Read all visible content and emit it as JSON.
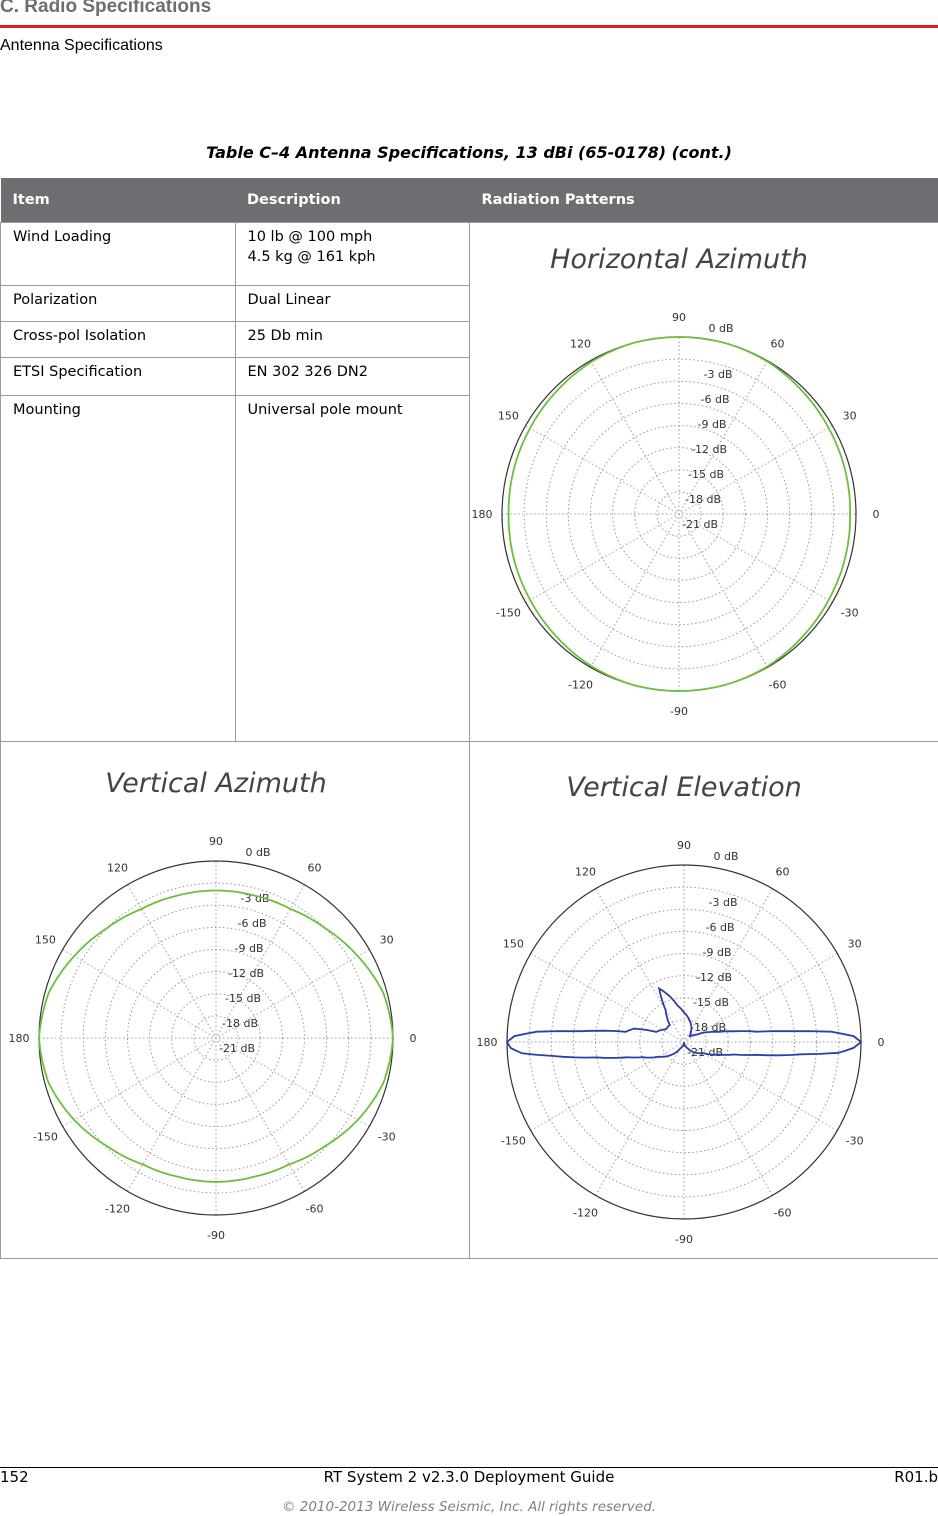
{
  "header": {
    "section": "C. Radio Specifications",
    "subtitle": "Antenna Specifications"
  },
  "table": {
    "caption": "Table C–4  Antenna Specifications, 13 dBi (65-0178)  (cont.)",
    "columns": [
      "Item",
      "Description",
      "Radiation Patterns"
    ],
    "rows": [
      {
        "item": "Wind Loading",
        "description": [
          "10 lb @ 100 mph",
          "4.5 kg @ 161 kph"
        ]
      },
      {
        "item": "Polarization",
        "description": [
          "Dual Linear"
        ]
      },
      {
        "item": "Cross-pol Isolation",
        "description": [
          "25 Db min"
        ]
      },
      {
        "item": "ETSI Specification",
        "description": [
          "EN 302 326 DN2"
        ]
      },
      {
        "item": "Mounting",
        "description": [
          "Universal pole mount"
        ]
      }
    ]
  },
  "chart_data": [
    {
      "type": "polar",
      "title": "Horizontal Azimuth",
      "color": "#6cbf3c",
      "angle_labels": [
        "90",
        "60",
        "30",
        "0",
        "-30",
        "-60",
        "-90",
        "-120",
        "-150",
        "180",
        "150",
        "120"
      ],
      "ring_labels": [
        "0 dB",
        "-3 dB",
        "-6 dB",
        "-9 dB",
        "-12 dB",
        "-15 dB",
        "-18 dB",
        "-21 dB"
      ],
      "rlim": [
        -24,
        0
      ],
      "angles": [
        0,
        15,
        30,
        45,
        60,
        75,
        90,
        105,
        120,
        135,
        150,
        165,
        180,
        -165,
        -150,
        -135,
        -120,
        -105,
        -90,
        -75,
        -60,
        -45,
        -30,
        -15
      ],
      "gain_db": [
        -0.8,
        -0.7,
        -0.6,
        -0.4,
        -0.1,
        0,
        0,
        0,
        -0.2,
        -0.5,
        -0.7,
        -0.8,
        -0.9,
        -0.8,
        -0.7,
        -0.5,
        -0.2,
        0,
        0,
        0,
        -0.1,
        -0.4,
        -0.6,
        -0.7
      ]
    },
    {
      "type": "polar",
      "title": "Vertical Azimuth",
      "color": "#6cbf3c",
      "angle_labels": [
        "90",
        "60",
        "30",
        "0",
        "-30",
        "-60",
        "-90",
        "-120",
        "-150",
        "180",
        "150",
        "120"
      ],
      "ring_labels": [
        "0 dB",
        "-3 dB",
        "-6 dB",
        "-9 dB",
        "-12 dB",
        "-15 dB",
        "-18 dB",
        "-21 dB"
      ],
      "rlim": [
        -24,
        0
      ],
      "angles": [
        0,
        15,
        30,
        45,
        60,
        75,
        90,
        105,
        120,
        135,
        150,
        165,
        180,
        -165,
        -150,
        -135,
        -120,
        -105,
        -90,
        -75,
        -60,
        -45,
        -30,
        -15
      ],
      "gain_db": [
        0,
        -0.5,
        -1.8,
        -3,
        -3.8,
        -4,
        -4,
        -4,
        -3.8,
        -3,
        -1.8,
        -0.5,
        0,
        -0.5,
        -1.8,
        -3.2,
        -4.2,
        -4.5,
        -4.5,
        -4.5,
        -4.2,
        -3.2,
        -1.8,
        -0.5
      ]
    },
    {
      "type": "polar",
      "title": "Vertical Elevation",
      "color": "#2b3fa8",
      "angle_labels": [
        "90",
        "60",
        "30",
        "0",
        "-30",
        "-60",
        "-90",
        "-120",
        "-150",
        "180",
        "150",
        "120"
      ],
      "ring_labels": [
        "0 dB",
        "-3 dB",
        "-6 dB",
        "-9 dB",
        "-12 dB",
        "-15 dB",
        "-18 dB",
        "-21 dB"
      ],
      "rlim": [
        -24,
        0
      ],
      "angles": [
        0,
        2,
        4,
        6,
        8,
        12,
        16,
        20,
        30,
        45,
        60,
        75,
        90,
        100,
        110,
        115,
        120,
        130,
        145,
        160,
        165,
        170,
        174,
        176,
        178,
        180,
        -178,
        -176,
        -174,
        -170,
        -165,
        -160,
        -150,
        -120,
        -90,
        -60,
        -30,
        -20,
        -14,
        -10,
        -6,
        -4,
        -2
      ],
      "gain_db": [
        0,
        -1,
        -4,
        -10,
        -14,
        -17,
        -19,
        -20,
        -22,
        -23,
        -22,
        -21,
        -20,
        -19,
        -17,
        -16,
        -19,
        -21,
        -21,
        -20,
        -17,
        -16,
        -10,
        -4,
        -1,
        0,
        -0.5,
        -2,
        -6,
        -12,
        -16,
        -18,
        -20,
        -23,
        -24,
        -23,
        -21,
        -19,
        -17,
        -14,
        -8,
        -3,
        -1
      ]
    }
  ],
  "footer": {
    "page": "152",
    "title": "RT System 2 v2.3.0 Deployment Guide",
    "revision": "R01.b",
    "copyright": "© 2010-2013 Wireless Seismic, Inc. All rights reserved."
  }
}
